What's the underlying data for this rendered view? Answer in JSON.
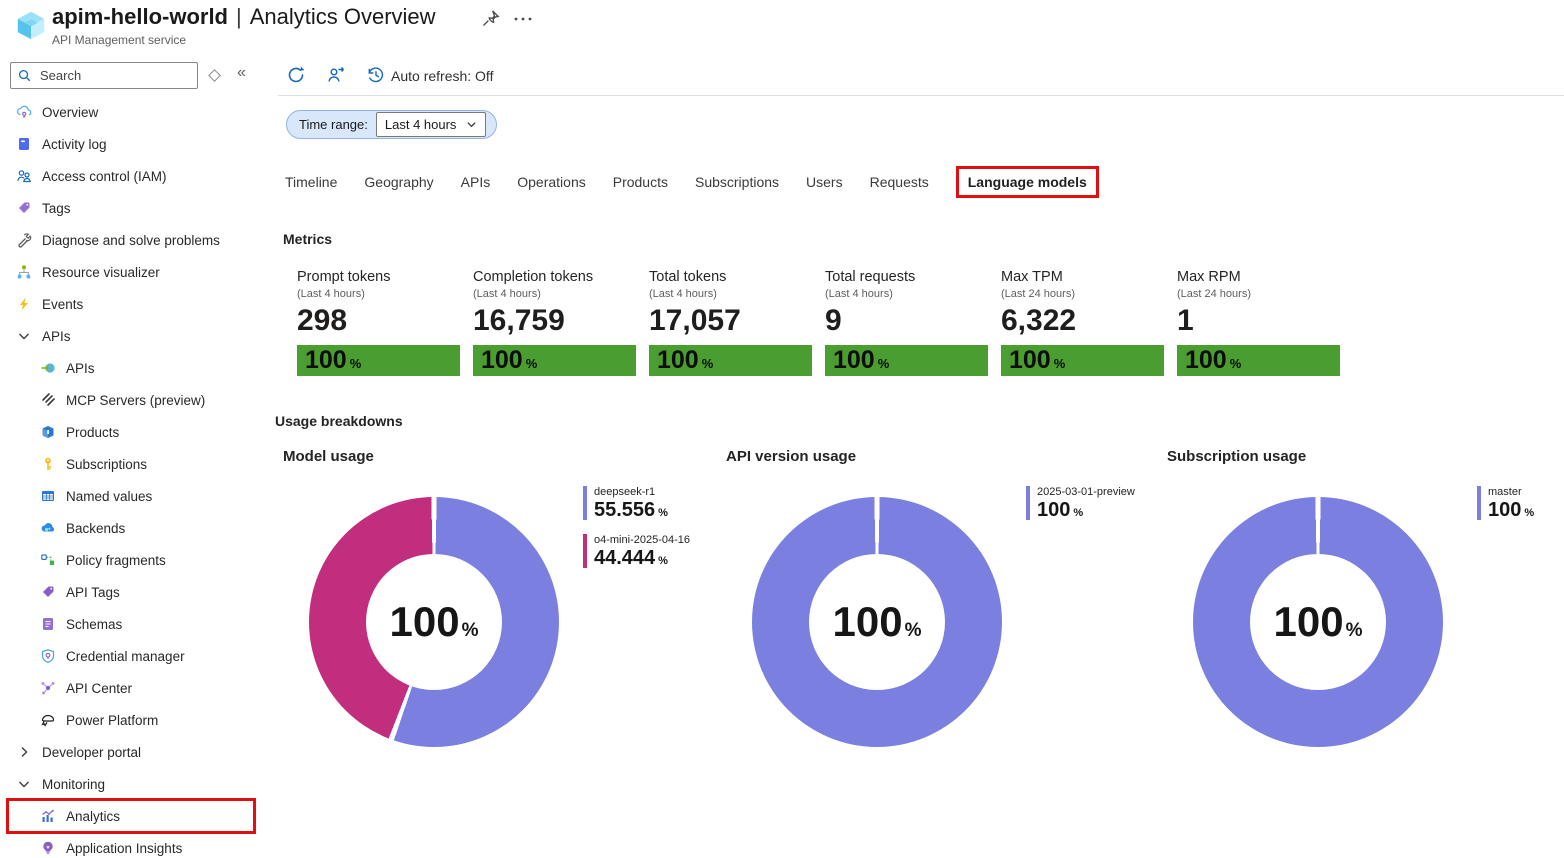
{
  "header": {
    "title_primary": "apim-hello-world",
    "title_separator": "|",
    "title_secondary": "Analytics Overview",
    "subtitle": "API Management service",
    "icons": [
      "api-management-cube-icon",
      "pin-icon",
      "more-icon"
    ]
  },
  "sidebar": {
    "search": {
      "placeholder": "Search"
    },
    "icons": [
      "search-icon",
      "diamond-icon",
      "collapse-icon"
    ],
    "items": [
      {
        "label": "Overview",
        "icon": "overview-icon",
        "level": 0
      },
      {
        "label": "Activity log",
        "icon": "activity-log-icon",
        "level": 0
      },
      {
        "label": "Access control (IAM)",
        "icon": "access-control-icon",
        "level": 0
      },
      {
        "label": "Tags",
        "icon": "tags-icon",
        "level": 0
      },
      {
        "label": "Diagnose and solve problems",
        "icon": "diagnose-icon",
        "level": 0
      },
      {
        "label": "Resource visualizer",
        "icon": "resource-visualizer-icon",
        "level": 0
      },
      {
        "label": "Events",
        "icon": "events-icon",
        "level": 0
      },
      {
        "label": "APIs",
        "icon": "chevron-down-icon",
        "level": 0,
        "group": true
      },
      {
        "label": "APIs",
        "icon": "apis-icon",
        "level": 1
      },
      {
        "label": "MCP Servers (preview)",
        "icon": "mcp-servers-icon",
        "level": 1
      },
      {
        "label": "Products",
        "icon": "products-icon",
        "level": 1
      },
      {
        "label": "Subscriptions",
        "icon": "subscriptions-icon",
        "level": 1
      },
      {
        "label": "Named values",
        "icon": "named-values-icon",
        "level": 1
      },
      {
        "label": "Backends",
        "icon": "backends-icon",
        "level": 1
      },
      {
        "label": "Policy fragments",
        "icon": "policy-fragments-icon",
        "level": 1
      },
      {
        "label": "API Tags",
        "icon": "api-tags-icon",
        "level": 1
      },
      {
        "label": "Schemas",
        "icon": "schemas-icon",
        "level": 1
      },
      {
        "label": "Credential manager",
        "icon": "credential-manager-icon",
        "level": 1
      },
      {
        "label": "API Center",
        "icon": "api-center-icon",
        "level": 1
      },
      {
        "label": "Power Platform",
        "icon": "power-platform-icon",
        "level": 1
      },
      {
        "label": "Developer portal",
        "icon": "chevron-right-icon",
        "level": 0,
        "group": true
      },
      {
        "label": "Monitoring",
        "icon": "chevron-down-icon",
        "level": 0,
        "group": true
      },
      {
        "label": "Analytics",
        "icon": "analytics-icon",
        "level": 1,
        "annotated": true
      },
      {
        "label": "Application Insights",
        "icon": "application-insights-icon",
        "level": 1
      }
    ]
  },
  "toolbar": {
    "auto_refresh_label": "Auto refresh: Off",
    "icons": [
      "refresh-icon",
      "feedback-icon",
      "auto-refresh-icon"
    ]
  },
  "time_range": {
    "label": "Time range:",
    "value": "Last 4 hours"
  },
  "tabs": {
    "items": [
      "Timeline",
      "Geography",
      "APIs",
      "Operations",
      "Products",
      "Subscriptions",
      "Users",
      "Requests",
      "Language models"
    ],
    "active": "Language models"
  },
  "metrics": {
    "heading": "Metrics",
    "bar_color": "#4a9d2f",
    "cards": [
      {
        "label": "Prompt tokens",
        "period": "(Last 4 hours)",
        "value": "298",
        "percent": "100",
        "unit": "%"
      },
      {
        "label": "Completion tokens",
        "period": "(Last 4 hours)",
        "value": "16,759",
        "percent": "100",
        "unit": "%"
      },
      {
        "label": "Total tokens",
        "period": "(Last 4 hours)",
        "value": "17,057",
        "percent": "100",
        "unit": "%"
      },
      {
        "label": "Total requests",
        "period": "(Last 4 hours)",
        "value": "9",
        "percent": "100",
        "unit": "%"
      },
      {
        "label": "Max TPM",
        "period": "(Last 24 hours)",
        "value": "6,322",
        "percent": "100",
        "unit": "%"
      },
      {
        "label": "Max RPM",
        "period": "(Last 24 hours)",
        "value": "1",
        "percent": "100",
        "unit": "%"
      }
    ]
  },
  "usage": {
    "heading": "Usage breakdowns"
  },
  "chart_data": [
    {
      "type": "donut",
      "title": "Model usage",
      "center_value": "100",
      "center_unit": "%",
      "legend_position": "right",
      "series": [
        {
          "name": "deepseek-r1",
          "value": 55.556,
          "display": "55.556",
          "unit": "%",
          "color": "#7b80e0"
        },
        {
          "name": "o4-mini-2025-04-16",
          "value": 44.444,
          "display": "44.444",
          "unit": "%",
          "color": "#c12e7e"
        }
      ]
    },
    {
      "type": "donut",
      "title": "API version usage",
      "center_value": "100",
      "center_unit": "%",
      "legend_position": "right",
      "series": [
        {
          "name": "2025-03-01-preview",
          "value": 100,
          "display": "100",
          "unit": "%",
          "color": "#7b80e0"
        }
      ]
    },
    {
      "type": "donut",
      "title": "Subscription usage",
      "center_value": "100",
      "center_unit": "%",
      "legend_position": "right",
      "series": [
        {
          "name": "master",
          "value": 100,
          "display": "100",
          "unit": "%",
          "color": "#7b80e0"
        }
      ]
    }
  ],
  "colors": {
    "accent_blue": "#0078d4",
    "annotation_red": "#e01010",
    "metric_green": "#4a9d2f",
    "donut_blue": "#7b80e0",
    "donut_pink": "#c12e7e"
  }
}
